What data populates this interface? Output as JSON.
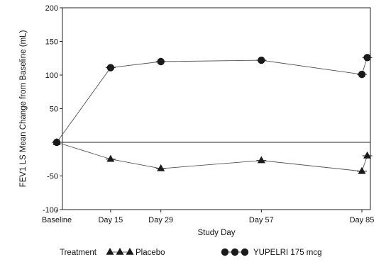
{
  "chart_data": {
    "type": "line",
    "xlabel": "Study Day",
    "ylabel": "FEV1 LS Mean Change from Baseline (mL)",
    "ylim": [
      -100,
      200
    ],
    "y_ticks": [
      200,
      150,
      100,
      50,
      0,
      -50,
      -100
    ],
    "y_tick_labels": [
      "200",
      "150",
      "100",
      "50",
      "0",
      "-50",
      "-100"
    ],
    "x_ticks": [
      0,
      15,
      29,
      57,
      85
    ],
    "x_tick_labels": [
      "Baseline",
      "Day 15",
      "Day 29",
      "Day 57",
      "Day 85"
    ],
    "x_range": [
      -2,
      88
    ],
    "grid": false,
    "zero_line": true,
    "legend_title": "Treatment",
    "legend_placement": "bottom",
    "series": [
      {
        "name": "Placebo",
        "marker": "triangle",
        "color": "#1a1a1a",
        "points": [
          {
            "x": 0,
            "y": 0
          },
          {
            "x": 15,
            "y": -25
          },
          {
            "x": 29,
            "y": -39
          },
          {
            "x": 57,
            "y": -27
          },
          {
            "x": 85,
            "y": -43
          },
          {
            "x": 86.5,
            "y": -20
          }
        ]
      },
      {
        "name": "YUPELRI 175 mcg",
        "marker": "circle",
        "color": "#1a1a1a",
        "points": [
          {
            "x": 0,
            "y": 0
          },
          {
            "x": 15,
            "y": 111
          },
          {
            "x": 29,
            "y": 120
          },
          {
            "x": 57,
            "y": 122
          },
          {
            "x": 85,
            "y": 101
          },
          {
            "x": 86.5,
            "y": 126
          }
        ]
      }
    ]
  }
}
